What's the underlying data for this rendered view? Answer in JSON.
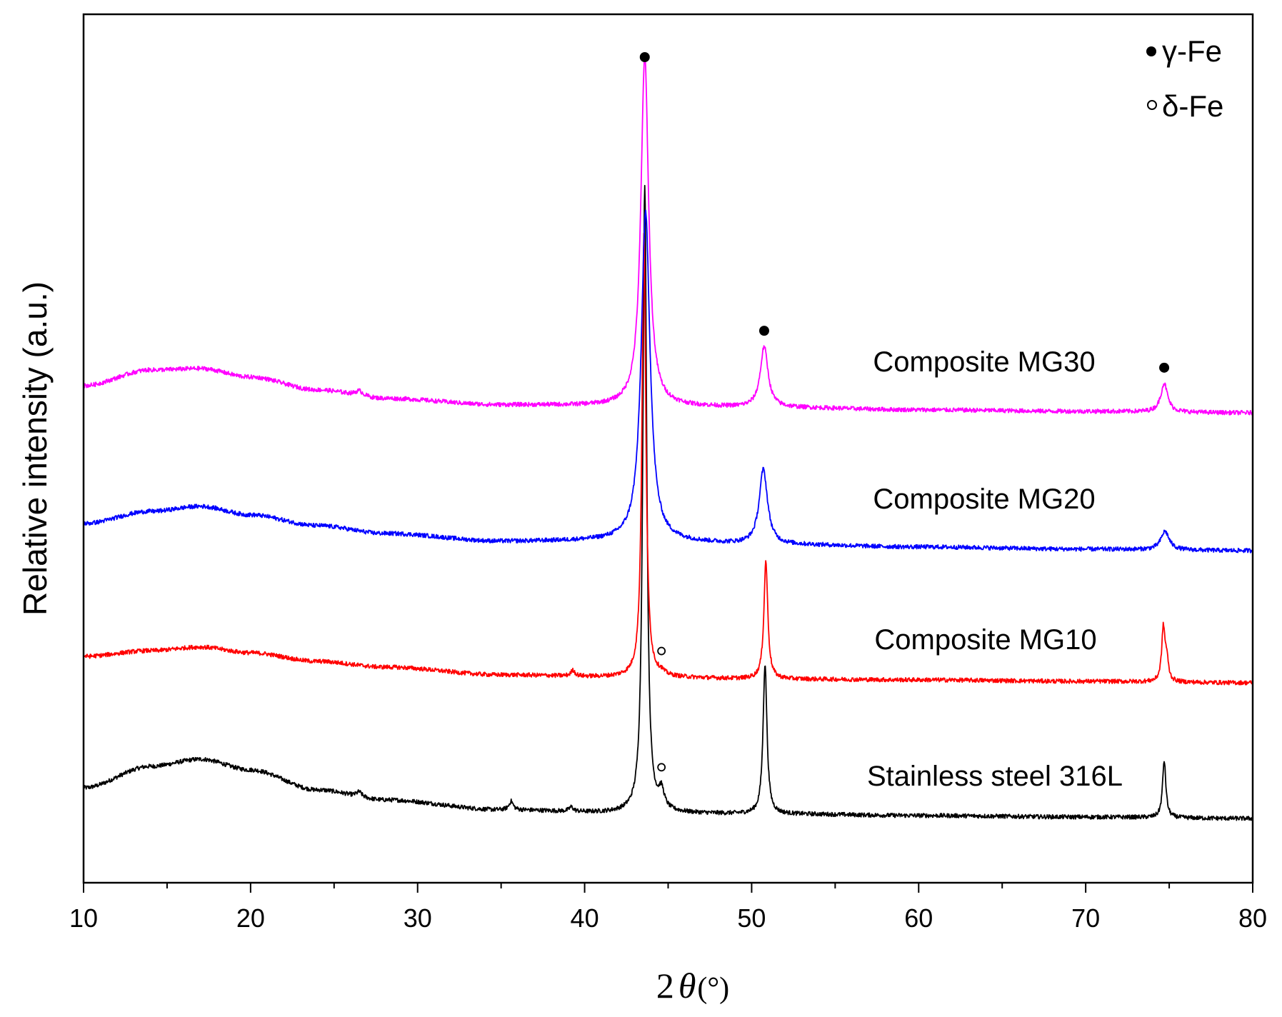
{
  "chart_data": {
    "type": "line",
    "title": "",
    "xlabel": "2θ(°)",
    "xlabel_prefix": "2",
    "xlabel_symbol": "θ",
    "xlabel_suffix": "(°)",
    "ylabel": "Relative intensity (a.u.)",
    "xlim": [
      10,
      80
    ],
    "xticks": [
      10,
      20,
      30,
      40,
      50,
      60,
      70,
      80
    ],
    "xtick_labels": [
      "10",
      "20",
      "30",
      "40",
      "50",
      "60",
      "70",
      "80"
    ],
    "minor_xtick_step": 5,
    "yticks": "none",
    "grid": false,
    "legend": {
      "position": "top-right",
      "items": [
        {
          "marker": "filled-circle",
          "label": "γ-Fe"
        },
        {
          "marker": "open-circle",
          "label": "δ-Fe"
        }
      ]
    },
    "series": [
      {
        "name": "Stainless steel 316L",
        "color": "#000000",
        "baseline": [
          [
            10,
            0.45
          ],
          [
            14,
            0.75
          ],
          [
            17,
            0.85
          ],
          [
            20,
            0.7
          ],
          [
            24,
            0.42
          ],
          [
            28,
            0.28
          ],
          [
            35,
            0.14
          ],
          [
            42,
            0.1
          ],
          [
            52,
            0.08
          ],
          [
            60,
            0.06
          ],
          [
            70,
            0.04
          ],
          [
            80,
            0.02
          ]
        ],
        "peaks": [
          {
            "x": 43.6,
            "height": 8.8,
            "width": 0.14
          },
          {
            "x": 44.6,
            "height": 0.25,
            "width": 0.2
          },
          {
            "x": 50.8,
            "height": 2.1,
            "width": 0.14
          },
          {
            "x": 74.7,
            "height": 0.8,
            "width": 0.12
          },
          {
            "x": 35.6,
            "height": 0.12,
            "width": 0.15
          },
          {
            "x": 39.2,
            "height": 0.06,
            "width": 0.15
          },
          {
            "x": 26.5,
            "height": 0.07,
            "width": 0.2
          }
        ]
      },
      {
        "name": "Composite MG10",
        "color": "#ff0000",
        "baseline": [
          [
            10,
            0.37
          ],
          [
            14,
            0.45
          ],
          [
            17,
            0.5
          ],
          [
            20,
            0.42
          ],
          [
            24,
            0.3
          ],
          [
            28,
            0.22
          ],
          [
            35,
            0.11
          ],
          [
            42,
            0.08
          ],
          [
            52,
            0.05
          ],
          [
            60,
            0.04
          ],
          [
            70,
            0.02
          ],
          [
            80,
            0.0
          ]
        ],
        "peaks": [
          {
            "x": 43.55,
            "height": 6.2,
            "width": 0.14
          },
          {
            "x": 44.6,
            "height": 0.04,
            "width": 0.2
          },
          {
            "x": 50.85,
            "height": 1.65,
            "width": 0.14
          },
          {
            "x": 74.65,
            "height": 0.74,
            "width": 0.12
          },
          {
            "x": 74.85,
            "height": 0.28,
            "width": 0.12
          },
          {
            "x": 39.3,
            "height": 0.08,
            "width": 0.15
          }
        ]
      },
      {
        "name": "Composite MG20",
        "color": "#0000ff",
        "baseline": [
          [
            10,
            0.38
          ],
          [
            14,
            0.55
          ],
          [
            17,
            0.62
          ],
          [
            20,
            0.5
          ],
          [
            24,
            0.35
          ],
          [
            28,
            0.24
          ],
          [
            35,
            0.13
          ],
          [
            42,
            0.14
          ],
          [
            52,
            0.08
          ],
          [
            60,
            0.05
          ],
          [
            70,
            0.02
          ],
          [
            80,
            0.0
          ]
        ],
        "peaks": [
          {
            "x": 43.65,
            "height": 4.6,
            "width": 0.32
          },
          {
            "x": 50.7,
            "height": 1.05,
            "width": 0.3
          },
          {
            "x": 74.75,
            "height": 0.26,
            "width": 0.3
          }
        ]
      },
      {
        "name": "Composite MG30",
        "color": "#ff00ff",
        "baseline": [
          [
            10,
            0.38
          ],
          [
            14,
            0.6
          ],
          [
            17,
            0.62
          ],
          [
            20,
            0.5
          ],
          [
            24,
            0.32
          ],
          [
            28,
            0.2
          ],
          [
            35,
            0.11
          ],
          [
            42,
            0.1
          ],
          [
            52,
            0.07
          ],
          [
            60,
            0.04
          ],
          [
            70,
            0.02
          ],
          [
            80,
            0.0
          ]
        ],
        "peaks": [
          {
            "x": 43.6,
            "height": 4.9,
            "width": 0.28
          },
          {
            "x": 50.75,
            "height": 0.85,
            "width": 0.28
          },
          {
            "x": 74.7,
            "height": 0.4,
            "width": 0.25
          },
          {
            "x": 26.5,
            "height": 0.07,
            "width": 0.3
          }
        ]
      }
    ],
    "peak_markers": [
      {
        "series": "Composite MG30",
        "x": 43.6,
        "marker": "filled-circle",
        "phase": "γ-Fe"
      },
      {
        "series": "Composite MG30",
        "x": 50.75,
        "marker": "filled-circle",
        "phase": "γ-Fe"
      },
      {
        "series": "Composite MG30",
        "x": 74.7,
        "marker": "filled-circle",
        "phase": "γ-Fe"
      },
      {
        "series": "Composite MG10",
        "x": 44.6,
        "marker": "open-circle",
        "phase": "δ-Fe"
      },
      {
        "series": "Stainless steel 316L",
        "x": 44.6,
        "marker": "open-circle",
        "phase": "δ-Fe"
      }
    ]
  }
}
